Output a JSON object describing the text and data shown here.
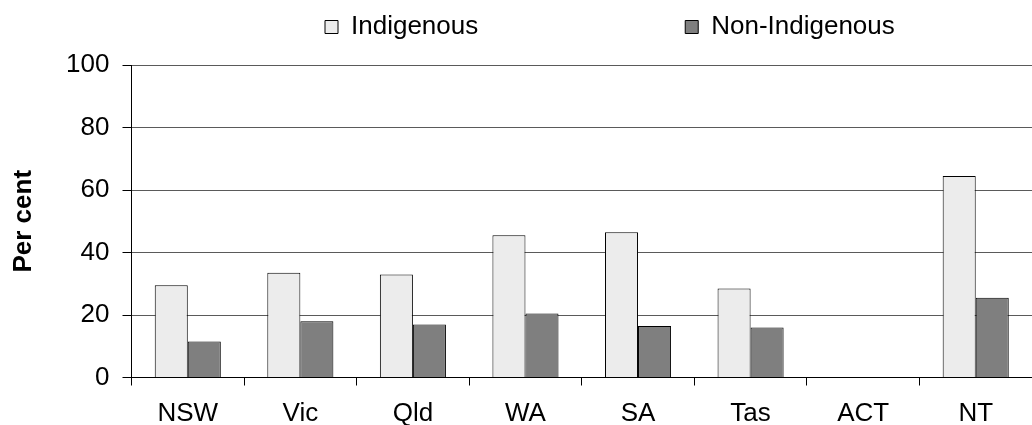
{
  "chart_data": {
    "type": "bar",
    "ylabel": "Per cent",
    "categories": [
      "NSW",
      "Vic",
      "Qld",
      "WA",
      "SA",
      "Tas",
      "ACT",
      "NT"
    ],
    "series": [
      {
        "name": "Indigenous",
        "color": "#ececec",
        "values": [
          29.5,
          33.5,
          33,
          45.5,
          46.5,
          28.5,
          null,
          64.5
        ]
      },
      {
        "name": "Non-Indigenous",
        "color": "#7f7f7f",
        "values": [
          11.5,
          18,
          17,
          20.5,
          16.5,
          16,
          null,
          25.5
        ]
      }
    ],
    "ylim": [
      0,
      100
    ],
    "yticks": [
      0,
      20,
      40,
      60,
      80,
      100
    ],
    "grid": "y",
    "legend": "top"
  }
}
